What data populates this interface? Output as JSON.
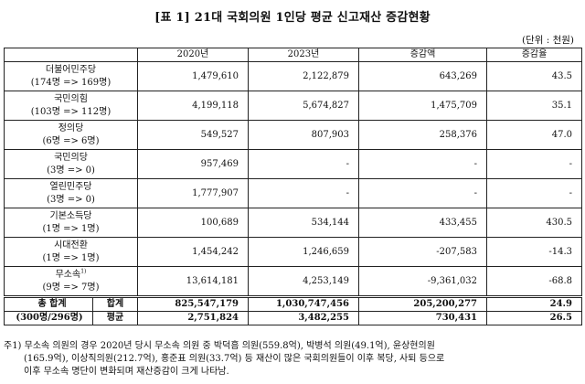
{
  "title": "[표 1] 21대 국회의원 1인당 평균 신고재산 증감현황",
  "unit": "(단위 : 천원)",
  "columns": [
    "",
    "2020년",
    "2023년",
    "증감액",
    "증감율"
  ],
  "parties": [
    {
      "name": "더불어민주당",
      "count": "(174명 => 169명)",
      "v2020": "1,479,610",
      "v2023": "2,122,879",
      "diff": "643,269",
      "rate": "43.5"
    },
    {
      "name": "국민의힘",
      "count": "(103명 => 112명)",
      "v2020": "4,199,118",
      "v2023": "5,674,827",
      "diff": "1,475,709",
      "rate": "35.1"
    },
    {
      "name": "정의당",
      "count": "(6명 => 6명)",
      "v2020": "549,527",
      "v2023": "807,903",
      "diff": "258,376",
      "rate": "47.0"
    },
    {
      "name": "국민의당",
      "count": "(3명 => 0)",
      "v2020": "957,469",
      "v2023": "-",
      "diff": "-",
      "rate": "-"
    },
    {
      "name": "열린민주당",
      "count": "(3명 => 0)",
      "v2020": "1,777,907",
      "v2023": "-",
      "diff": "-",
      "rate": "-"
    },
    {
      "name": "기본소득당",
      "count": "(1명 => 1명)",
      "v2020": "100,689",
      "v2023": "534,144",
      "diff": "433,455",
      "rate": "430.5"
    },
    {
      "name": "시대전환",
      "count": "(1명 => 1명)",
      "v2020": "1,454,242",
      "v2023": "1,246,659",
      "diff": "-207,583",
      "rate": "-14.3"
    },
    {
      "name": "무소속",
      "footnote_mark": "1)",
      "count": "(9명 => 7명)",
      "v2020": "13,614,181",
      "v2023": "4,253,149",
      "diff": "-9,361,032",
      "rate": "-68.8"
    }
  ],
  "total": {
    "label": "총 합계",
    "count": "(300명/296명)",
    "sum_label": "합계",
    "sum": {
      "v2020": "825,547,179",
      "v2023": "1,030,747,456",
      "diff": "205,200,277",
      "rate": "24.9"
    },
    "avg_label": "평균",
    "avg": {
      "v2020": "2,751,824",
      "v2023": "3,482,255",
      "diff": "730,431",
      "rate": "26.5"
    }
  },
  "note": {
    "line1": "주1) 무소속 의원의 경우 2020년 당시 무소속 의원 중 박덕흠 의원(559.8억), 박병석 의원(49.1억), 윤상현의원",
    "line2": "(165.9억), 이상직의원(212.7억), 홍준표 의원(33.7억) 등 재산이 많은 국회의원들이 이후 복당, 사퇴 등으로",
    "line3": "이후 무소속 명단이 변화되며 재산증감이 크게 나타남."
  }
}
